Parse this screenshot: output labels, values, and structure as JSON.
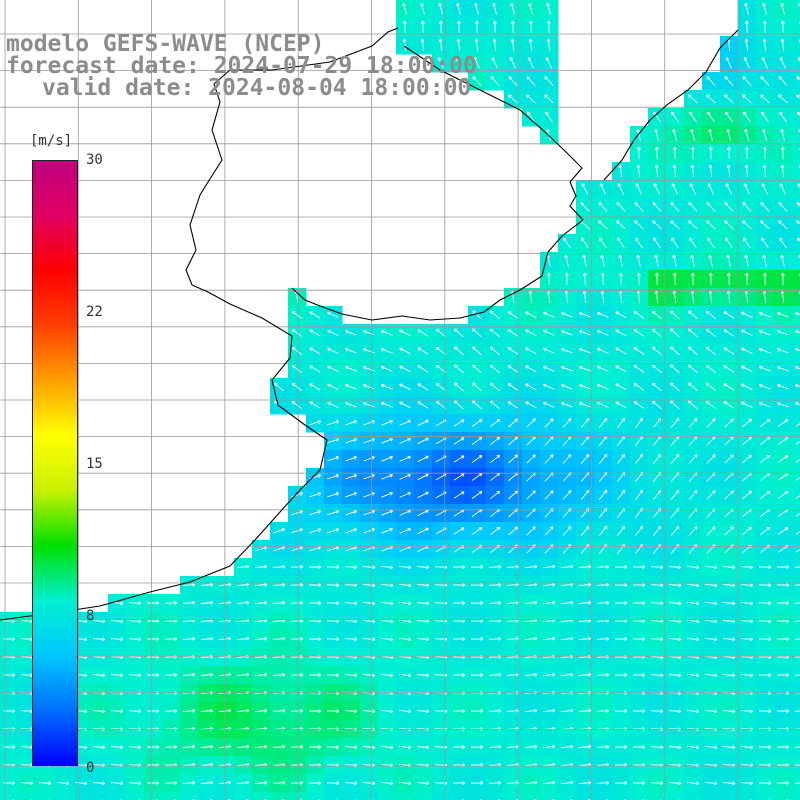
{
  "title": {
    "line1": "modelo GEFS-WAVE (NCEP)",
    "line2": "forecast date: 2024-07-29 18:00:00",
    "line3": "valid date: 2024-08-04 18:00:00"
  },
  "colorbar": {
    "unit": "[m/s]",
    "ticks": [
      "30",
      "22",
      "15",
      "8",
      "0"
    ],
    "min": 0,
    "max": 30,
    "colors": [
      "#0000ff",
      "#0070ff",
      "#00c8ff",
      "#00f0d0",
      "#00e000",
      "#c8f000",
      "#ffff00",
      "#ffa000",
      "#ff4000",
      "#ff0000",
      "#e00060",
      "#c00080"
    ]
  },
  "map": {
    "grid": true,
    "field": "wind speed",
    "land_color": "#ffffff",
    "grid_color": "#9a9a9a",
    "coast_color": "#000000",
    "arrow_color": "#ffffff"
  }
}
